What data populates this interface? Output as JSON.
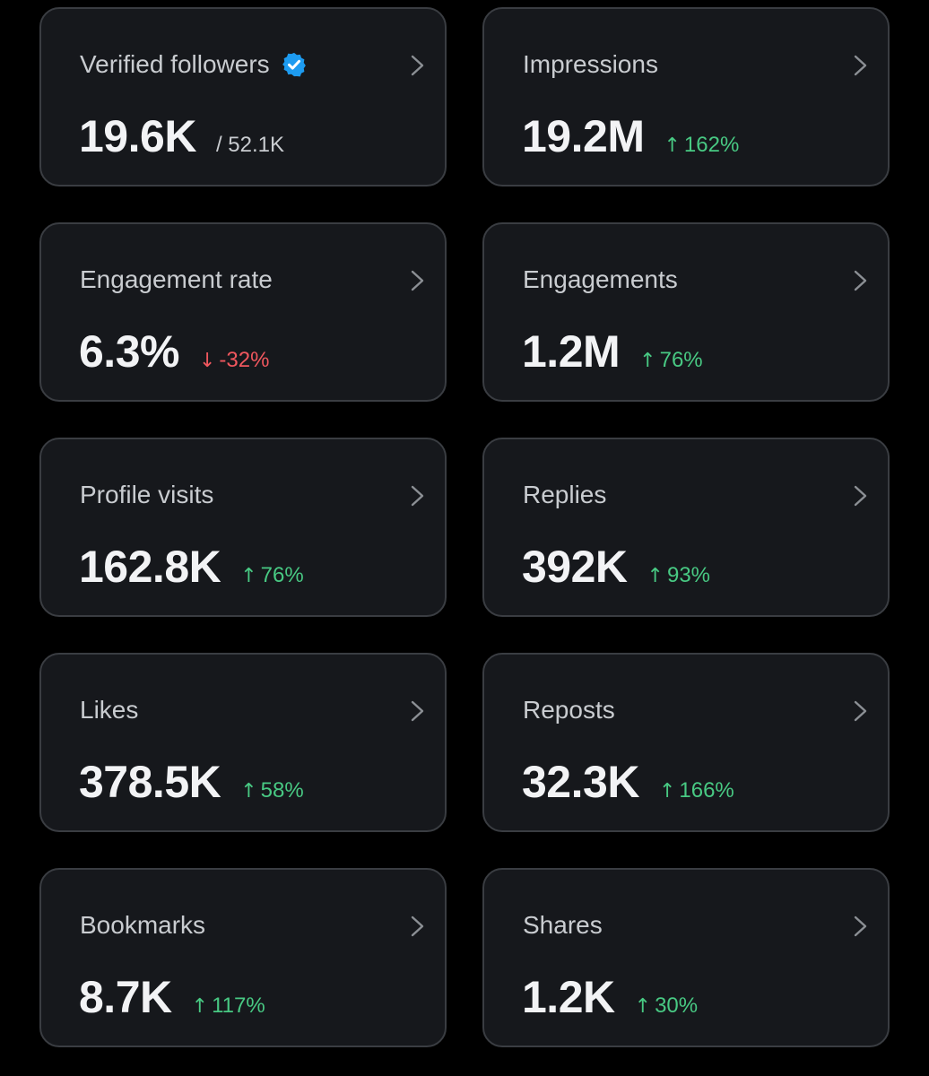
{
  "colors": {
    "background": "#000000",
    "card": "#16181c",
    "border": "#3a3d42",
    "up": "#48c983",
    "down": "#f0575e",
    "verified": "#1d9bf0"
  },
  "cards": [
    {
      "title": "Verified followers",
      "verified_icon": "verified-badge-icon",
      "value": "19.6K",
      "sub": "/ 52.1K"
    },
    {
      "title": "Impressions",
      "value": "19.2M",
      "arrow": "↑",
      "change": "162%",
      "direction": "up"
    },
    {
      "title": "Engagement rate",
      "value": "6.3%",
      "arrow": "↓",
      "change": "-32%",
      "direction": "down"
    },
    {
      "title": "Engagements",
      "value": "1.2M",
      "arrow": "↑",
      "change": "76%",
      "direction": "up"
    },
    {
      "title": "Profile visits",
      "value": "162.8K",
      "arrow": "↑",
      "change": "76%",
      "direction": "up"
    },
    {
      "title": "Replies",
      "value": "392K",
      "arrow": "↑",
      "change": "93%",
      "direction": "up"
    },
    {
      "title": "Likes",
      "value": "378.5K",
      "arrow": "↑",
      "change": "58%",
      "direction": "up"
    },
    {
      "title": "Reposts",
      "value": "32.3K",
      "arrow": "↑",
      "change": "166%",
      "direction": "up"
    },
    {
      "title": "Bookmarks",
      "value": "8.7K",
      "arrow": "↑",
      "change": "117%",
      "direction": "up"
    },
    {
      "title": "Shares",
      "value": "1.2K",
      "arrow": "↑",
      "change": "30%",
      "direction": "up"
    }
  ]
}
